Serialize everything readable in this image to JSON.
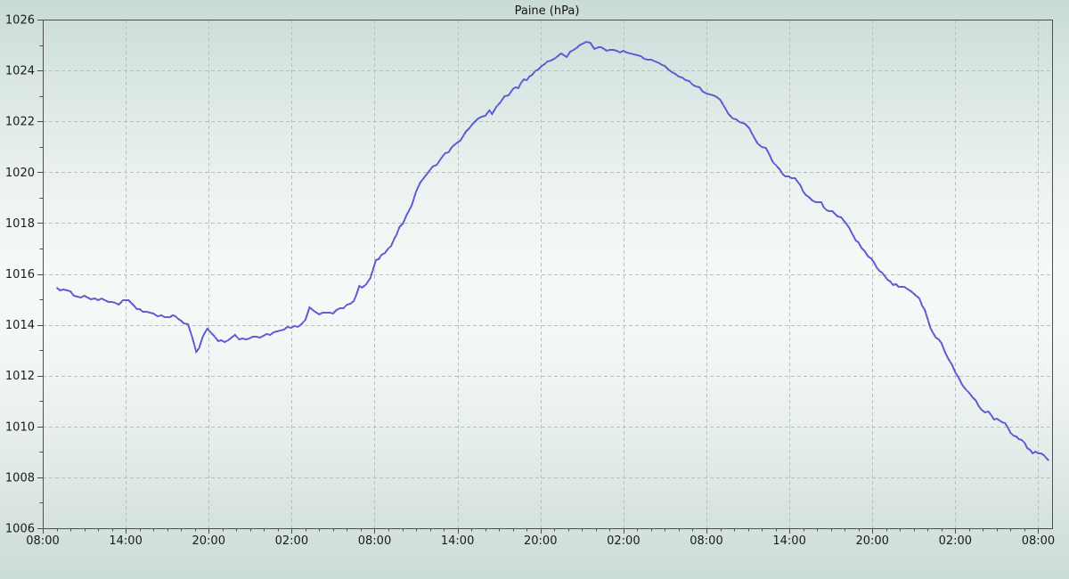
{
  "page": {
    "title": "Paine (hPa)"
  },
  "colors": {
    "background_top": "#c9dbd7",
    "background_light": "#f5f9f8",
    "background_bottom": "#ccddd9",
    "axis": "#4f4f4f",
    "grid": "#b9c1c0",
    "line": "#5f5fd2",
    "text": "#1a1a1a"
  },
  "chart_data": {
    "type": "line",
    "title": "Paine (hPa)",
    "xlabel": "",
    "ylabel": "",
    "legend": "none",
    "grid": "dashed-at-major-ticks",
    "xlim_hours": [
      0,
      73
    ],
    "ylim": [
      1006,
      1026
    ],
    "x_tick_hours": [
      0,
      6,
      12,
      18,
      24,
      30,
      36,
      42,
      48,
      54,
      60,
      66,
      72
    ],
    "x_tick_labels": [
      "08:00",
      "14:00",
      "20:00",
      "02:00",
      "08:00",
      "14:00",
      "20:00",
      "02:00",
      "08:00",
      "14:00",
      "20:00",
      "02:00",
      "08:00"
    ],
    "x_minor_step_hours": 1,
    "y_tick_values": [
      1026,
      1024,
      1022,
      1020,
      1018,
      1016,
      1014,
      1012,
      1010,
      1008,
      1006
    ],
    "y_minor_step": 1,
    "series": [
      {
        "name": "Paine",
        "unit": "hPa",
        "points_format": "[hours_after_first_0800, hPa]",
        "points": [
          [
            1.0,
            1015.45
          ],
          [
            1.5,
            1015.35
          ],
          [
            2.0,
            1015.25
          ],
          [
            2.5,
            1015.15
          ],
          [
            3.0,
            1015.1
          ],
          [
            3.5,
            1015.05
          ],
          [
            4.0,
            1015.0
          ],
          [
            4.5,
            1014.95
          ],
          [
            5.0,
            1014.9
          ],
          [
            5.5,
            1014.85
          ],
          [
            5.8,
            1014.9
          ],
          [
            6.2,
            1014.95
          ],
          [
            6.6,
            1014.7
          ],
          [
            7.0,
            1014.6
          ],
          [
            7.5,
            1014.5
          ],
          [
            8.0,
            1014.4
          ],
          [
            8.3,
            1014.3
          ],
          [
            8.6,
            1014.4
          ],
          [
            9.0,
            1014.3
          ],
          [
            9.4,
            1014.35
          ],
          [
            9.8,
            1014.25
          ],
          [
            10.2,
            1014.1
          ],
          [
            10.5,
            1014.0
          ],
          [
            10.8,
            1013.5
          ],
          [
            11.1,
            1012.9
          ],
          [
            11.3,
            1013.05
          ],
          [
            11.6,
            1013.6
          ],
          [
            11.9,
            1013.9
          ],
          [
            12.2,
            1013.7
          ],
          [
            12.5,
            1013.45
          ],
          [
            12.9,
            1013.35
          ],
          [
            13.4,
            1013.4
          ],
          [
            13.9,
            1013.6
          ],
          [
            14.2,
            1013.45
          ],
          [
            14.7,
            1013.45
          ],
          [
            15.2,
            1013.5
          ],
          [
            15.7,
            1013.55
          ],
          [
            16.2,
            1013.6
          ],
          [
            16.7,
            1013.65
          ],
          [
            17.2,
            1013.75
          ],
          [
            17.7,
            1013.85
          ],
          [
            18.2,
            1013.9
          ],
          [
            18.7,
            1014.0
          ],
          [
            19.0,
            1014.2
          ],
          [
            19.3,
            1014.65
          ],
          [
            19.6,
            1014.5
          ],
          [
            20.0,
            1014.45
          ],
          [
            20.5,
            1014.5
          ],
          [
            21.0,
            1014.5
          ],
          [
            21.5,
            1014.6
          ],
          [
            22.0,
            1014.75
          ],
          [
            22.5,
            1014.95
          ],
          [
            22.9,
            1015.5
          ],
          [
            23.1,
            1015.4
          ],
          [
            23.4,
            1015.6
          ],
          [
            23.7,
            1015.85
          ],
          [
            24.1,
            1016.5
          ],
          [
            24.5,
            1016.7
          ],
          [
            25.0,
            1016.95
          ],
          [
            25.4,
            1017.3
          ],
          [
            25.8,
            1017.8
          ],
          [
            26.3,
            1018.25
          ],
          [
            26.7,
            1018.7
          ],
          [
            27.0,
            1019.2
          ],
          [
            27.3,
            1019.65
          ],
          [
            27.6,
            1019.75
          ],
          [
            27.9,
            1020.05
          ],
          [
            28.2,
            1020.25
          ],
          [
            28.5,
            1020.35
          ],
          [
            28.8,
            1020.55
          ],
          [
            29.1,
            1020.7
          ],
          [
            29.6,
            1020.95
          ],
          [
            30.2,
            1021.3
          ],
          [
            30.6,
            1021.55
          ],
          [
            31.1,
            1021.9
          ],
          [
            31.5,
            1022.1
          ],
          [
            32.0,
            1022.25
          ],
          [
            32.3,
            1022.4
          ],
          [
            32.5,
            1022.3
          ],
          [
            32.8,
            1022.55
          ],
          [
            33.1,
            1022.75
          ],
          [
            33.4,
            1022.95
          ],
          [
            33.7,
            1023.05
          ],
          [
            34.0,
            1023.3
          ],
          [
            34.4,
            1023.35
          ],
          [
            34.8,
            1023.65
          ],
          [
            35.2,
            1023.7
          ],
          [
            35.6,
            1024.0
          ],
          [
            36.1,
            1024.15
          ],
          [
            36.5,
            1024.3
          ],
          [
            37.0,
            1024.5
          ],
          [
            37.5,
            1024.65
          ],
          [
            37.9,
            1024.6
          ],
          [
            38.4,
            1024.85
          ],
          [
            38.8,
            1025.0
          ],
          [
            39.3,
            1025.1
          ],
          [
            39.6,
            1025.05
          ],
          [
            39.9,
            1024.85
          ],
          [
            40.2,
            1024.95
          ],
          [
            40.6,
            1024.8
          ],
          [
            41.0,
            1024.85
          ],
          [
            41.5,
            1024.8
          ],
          [
            42.0,
            1024.75
          ],
          [
            42.5,
            1024.65
          ],
          [
            43.0,
            1024.6
          ],
          [
            43.5,
            1024.5
          ],
          [
            44.0,
            1024.4
          ],
          [
            44.6,
            1024.25
          ],
          [
            45.0,
            1024.15
          ],
          [
            45.5,
            1023.95
          ],
          [
            46.0,
            1023.8
          ],
          [
            46.5,
            1023.65
          ],
          [
            47.0,
            1023.45
          ],
          [
            47.5,
            1023.3
          ],
          [
            48.0,
            1023.1
          ],
          [
            48.5,
            1023.0
          ],
          [
            49.0,
            1022.85
          ],
          [
            49.3,
            1022.6
          ],
          [
            49.6,
            1022.3
          ],
          [
            49.9,
            1022.15
          ],
          [
            50.4,
            1021.95
          ],
          [
            50.8,
            1021.85
          ],
          [
            51.1,
            1021.7
          ],
          [
            51.4,
            1021.45
          ],
          [
            51.7,
            1021.15
          ],
          [
            52.0,
            1021.05
          ],
          [
            52.3,
            1020.95
          ],
          [
            52.6,
            1020.6
          ],
          [
            53.0,
            1020.3
          ],
          [
            53.3,
            1020.1
          ],
          [
            53.5,
            1020.0
          ],
          [
            53.7,
            1019.8
          ],
          [
            54.4,
            1019.8
          ],
          [
            54.8,
            1019.5
          ],
          [
            55.0,
            1019.2
          ],
          [
            55.4,
            1019.0
          ],
          [
            55.9,
            1018.8
          ],
          [
            56.3,
            1018.75
          ],
          [
            56.7,
            1018.5
          ],
          [
            57.1,
            1018.45
          ],
          [
            57.5,
            1018.3
          ],
          [
            58.0,
            1018.05
          ],
          [
            58.3,
            1017.8
          ],
          [
            58.6,
            1017.5
          ],
          [
            59.0,
            1017.2
          ],
          [
            59.4,
            1016.9
          ],
          [
            59.7,
            1016.65
          ],
          [
            60.1,
            1016.45
          ],
          [
            60.5,
            1016.15
          ],
          [
            60.9,
            1015.9
          ],
          [
            61.3,
            1015.65
          ],
          [
            61.7,
            1015.55
          ],
          [
            62.1,
            1015.5
          ],
          [
            62.5,
            1015.45
          ],
          [
            62.8,
            1015.35
          ],
          [
            63.1,
            1015.2
          ],
          [
            63.4,
            1015.0
          ],
          [
            63.8,
            1014.55
          ],
          [
            64.2,
            1013.9
          ],
          [
            64.6,
            1013.5
          ],
          [
            65.0,
            1013.25
          ],
          [
            65.5,
            1012.7
          ],
          [
            66.0,
            1012.1
          ],
          [
            66.5,
            1011.65
          ],
          [
            67.0,
            1011.3
          ],
          [
            67.5,
            1011.0
          ],
          [
            67.9,
            1010.65
          ],
          [
            68.4,
            1010.55
          ],
          [
            68.8,
            1010.3
          ],
          [
            69.2,
            1010.25
          ],
          [
            69.6,
            1010.1
          ],
          [
            70.0,
            1009.8
          ],
          [
            70.4,
            1009.6
          ],
          [
            70.8,
            1009.45
          ],
          [
            71.2,
            1009.2
          ],
          [
            71.6,
            1008.95
          ],
          [
            72.0,
            1009.0
          ],
          [
            72.4,
            1008.85
          ],
          [
            72.75,
            1008.65
          ]
        ]
      }
    ]
  }
}
